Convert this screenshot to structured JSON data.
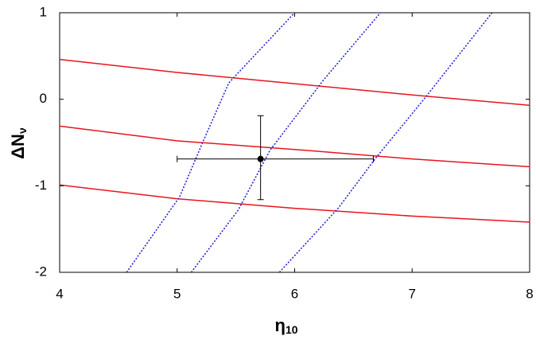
{
  "chart_data": {
    "type": "line",
    "xlabel": "η",
    "xlabel_sub": "10",
    "ylabel": "ΔN",
    "ylabel_sub": "ν",
    "xlim": [
      4,
      8
    ],
    "xticks": [
      4,
      5,
      6,
      7,
      8
    ],
    "ylim": [
      -2,
      1
    ],
    "yticks": [
      1,
      0,
      -1,
      -2
    ],
    "grid": false,
    "series": [
      {
        "color": "#e8141e",
        "style": "solid",
        "x": [
          4,
          5,
          6,
          7,
          8
        ],
        "values": [
          0.46,
          0.31,
          0.18,
          0.05,
          -0.07
        ]
      },
      {
        "color": "#e8141e",
        "style": "solid",
        "x": [
          4,
          5,
          6,
          7,
          8
        ],
        "values": [
          -0.31,
          -0.48,
          -0.58,
          -0.69,
          -0.78
        ]
      },
      {
        "color": "#e8141e",
        "style": "solid",
        "x": [
          4,
          5,
          6,
          7,
          8
        ],
        "values": [
          -0.99,
          -1.15,
          -1.26,
          -1.35,
          -1.42
        ]
      },
      {
        "color": "#1a1ad0",
        "style": "dotted",
        "x": [
          4.57,
          5.02,
          5.22,
          5.44,
          6.0
        ],
        "values": [
          -2,
          -1.13,
          -0.49,
          0.19,
          1
        ]
      },
      {
        "color": "#1a1ad0",
        "style": "dotted",
        "x": [
          5.12,
          5.52,
          5.79,
          6.25,
          6.73
        ],
        "values": [
          -2,
          -1.28,
          -0.59,
          0.23,
          1
        ]
      },
      {
        "color": "#1a1ad0",
        "style": "dotted",
        "x": [
          5.87,
          6.37,
          6.69,
          7.1,
          7.68
        ],
        "values": [
          -2,
          -1.26,
          -0.68,
          0,
          1
        ]
      }
    ],
    "points": [
      {
        "x": 5.71,
        "y": -0.69,
        "xerr": [
          0.71,
          0.96
        ],
        "yerr": [
          0.5,
          0.47
        ],
        "color": "#000000"
      }
    ]
  }
}
